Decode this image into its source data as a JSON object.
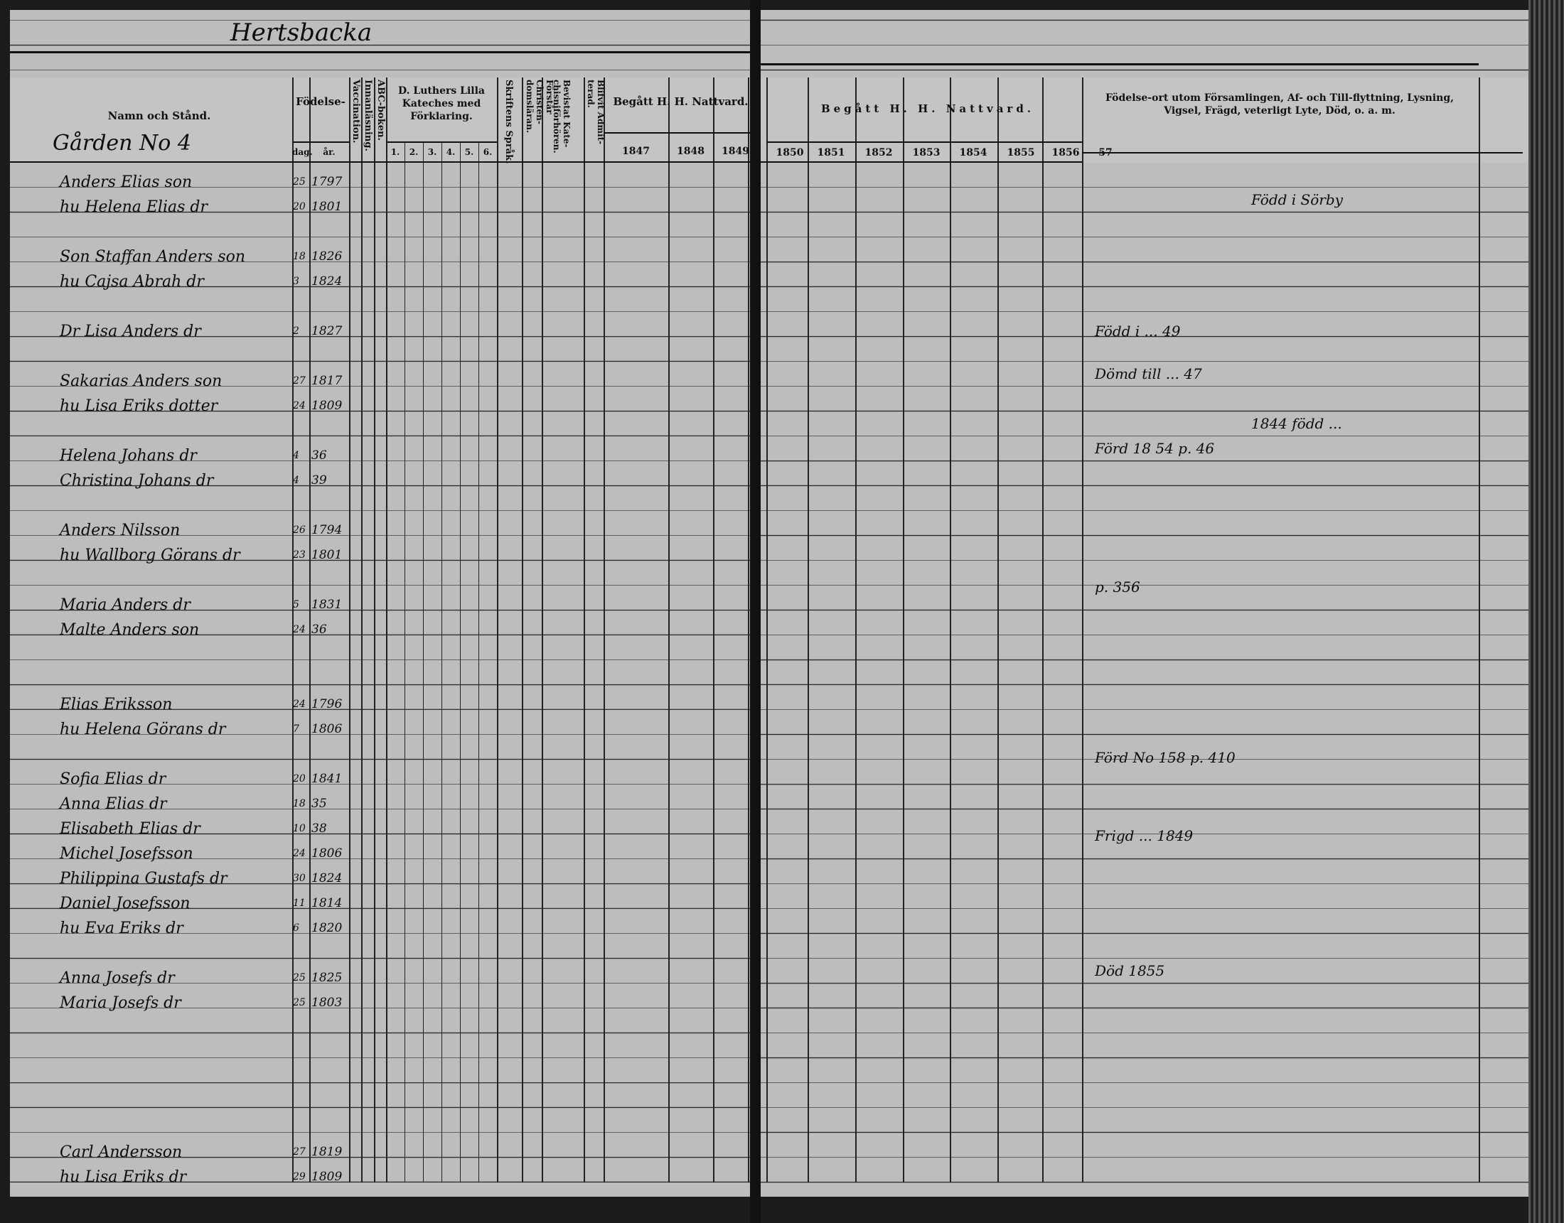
{
  "left_page": {
    "village_heading": "Hertsbacka",
    "household_heading": "Gården No 4",
    "headers": {
      "name": "Namn och Stånd.",
      "birth": "Födelse-",
      "birth_day": "dag.",
      "birth_year": "år.",
      "vaccination": "Vaccination.",
      "reading": "Innanläsning.",
      "abc": "ABC-boken.",
      "catechism": "D. Luthers Lilla Kateches med Förklaring.",
      "catechism_parts": [
        "1.",
        "2.",
        "3.",
        "4.",
        "5.",
        "6."
      ],
      "scripture": "Skriftens Språk.",
      "understanding": "Förstår Christen-domsläran.",
      "attended": "Bevistat Kate-chisniförhören.",
      "admitted": "Blifvit Admit-terad.",
      "communion": "Begått H. H. Nattvard.",
      "years": [
        "1847",
        "1848",
        "1849"
      ]
    },
    "entries": [
      {
        "name": "Anders Elias son",
        "day": "25",
        "year": "1797"
      },
      {
        "name": "hu Helena Elias dr",
        "day": "20",
        "year": "1801"
      },
      {
        "name": "Son Staffan Anders son",
        "day": "18",
        "year": "1826"
      },
      {
        "name": "hu Cajsa Abrah dr",
        "day": "3",
        "year": "1824"
      },
      {
        "name": "Dr Lisa Anders dr",
        "day": "2",
        "year": "1827"
      },
      {
        "name": "Sakarias Anders son",
        "day": "27",
        "year": "1817"
      },
      {
        "name": "hu Lisa Eriks dotter",
        "day": "24",
        "year": "1809"
      },
      {
        "name": "Helena Johans dr",
        "day": "4",
        "year": "36"
      },
      {
        "name": "Christina Johans dr",
        "day": "4",
        "year": "39"
      },
      {
        "name": "Anders Nilsson",
        "day": "26",
        "year": "1794"
      },
      {
        "name": "hu Wallborg Görans dr",
        "day": "23",
        "year": "1801"
      },
      {
        "name": "Maria Anders dr",
        "day": "5",
        "year": "1831"
      },
      {
        "name": "Malte Anders son",
        "day": "24",
        "year": "36"
      },
      {
        "name": "Elias Eriksson",
        "day": "24",
        "year": "1796"
      },
      {
        "name": "hu Helena Görans dr",
        "day": "7",
        "year": "1806"
      },
      {
        "name": "Sofia Elias dr",
        "day": "20",
        "year": "1841"
      },
      {
        "name": "Anna Elias dr",
        "day": "18",
        "year": "35"
      },
      {
        "name": "Elisabeth Elias dr",
        "day": "10",
        "year": "38"
      },
      {
        "name": "Michel Josefsson",
        "day": "24",
        "year": "1806"
      },
      {
        "name": "Philippina Gustafs dr",
        "day": "30",
        "year": "1824"
      },
      {
        "name": "Daniel Josefsson",
        "day": "11",
        "year": "1814"
      },
      {
        "name": "hu Eva Eriks dr",
        "day": "6",
        "year": "1820"
      },
      {
        "name": "Anna Josefs dr",
        "day": "25",
        "year": "1825"
      },
      {
        "name": "Maria Josefs dr",
        "day": "25",
        "year": "1803"
      },
      {
        "name": "Carl Andersson",
        "day": "27",
        "year": "1819"
      },
      {
        "name": "hu Lisa Eriks dr",
        "day": "29",
        "year": "1809"
      }
    ]
  },
  "right_page": {
    "communion_header": "Begått H. H. Nattvard.",
    "years": [
      "1850",
      "1851",
      "1852",
      "1853",
      "1854",
      "1855",
      "1856",
      "57"
    ],
    "remarks_header": "Födelse-ort utom Församlingen, Af- och Till-flyttning, Lysning, Vigsel, Frägd, veterligt Lyte, Död, o. a. m.",
    "remarks": [
      "Född i Sörby",
      "Född i ... 49",
      "Dömd till ... 47",
      "1844 född ...",
      "Förd 18 54 p. 46",
      "p. 356",
      "Förd No 158 p. 410",
      "Frigd ... 1849",
      "Död 1855"
    ]
  }
}
